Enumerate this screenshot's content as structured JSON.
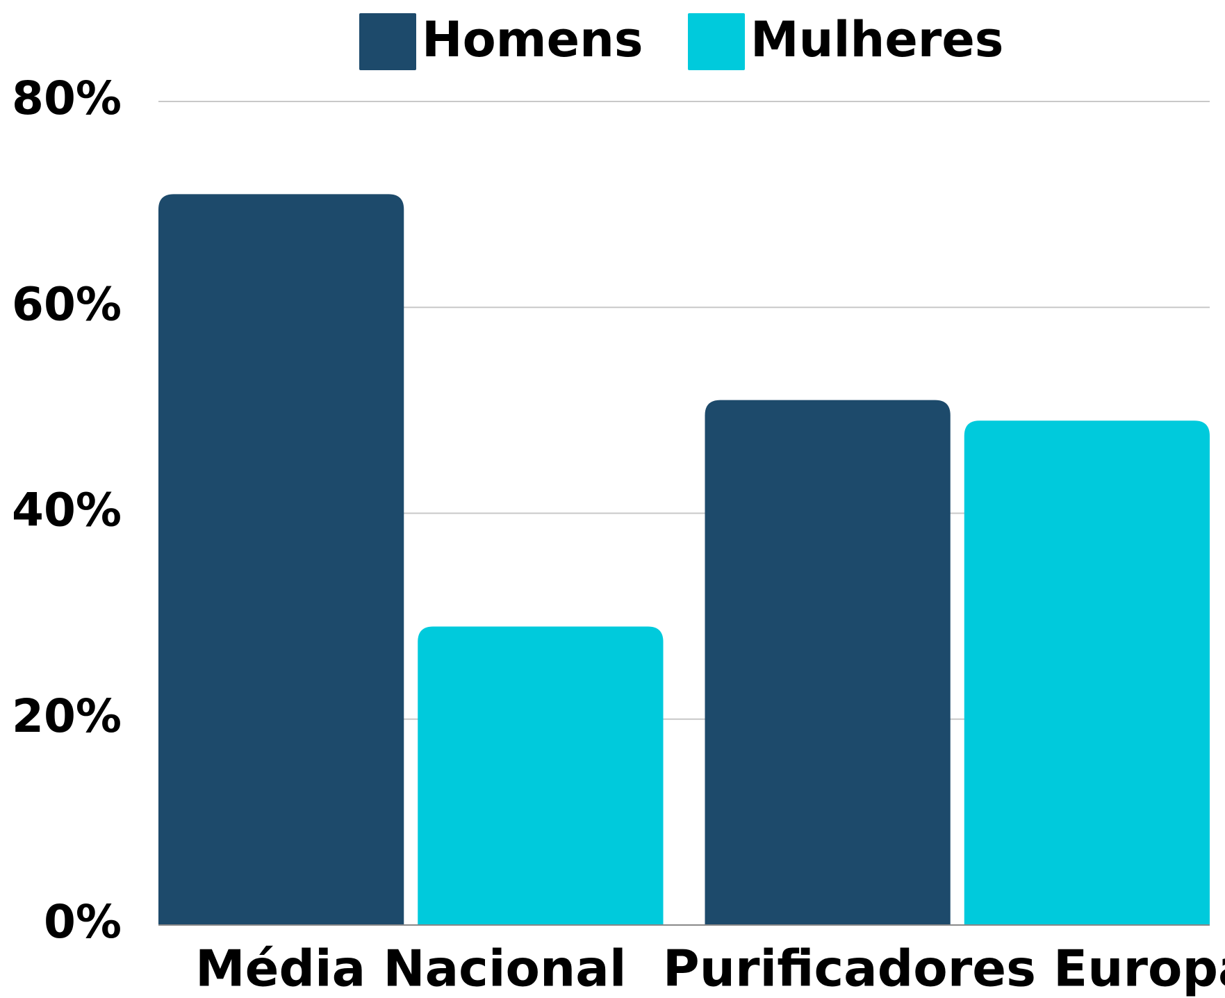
{
  "chart_data": {
    "type": "bar",
    "categories": [
      "Média Nacional",
      "Purificadores Europa"
    ],
    "series": [
      {
        "name": "Homens",
        "color": "#1d4a6b",
        "values": [
          71,
          51
        ]
      },
      {
        "name": "Mulheres",
        "color": "#00cadc",
        "values": [
          29,
          49
        ]
      }
    ],
    "ylim": [
      0,
      80
    ],
    "yticks": [
      {
        "value": 0,
        "label": "0%"
      },
      {
        "value": 20,
        "label": "20%"
      },
      {
        "value": 40,
        "label": "40%"
      },
      {
        "value": 60,
        "label": "60%"
      },
      {
        "value": 80,
        "label": "80%"
      }
    ],
    "grid": true,
    "legend": "top"
  }
}
